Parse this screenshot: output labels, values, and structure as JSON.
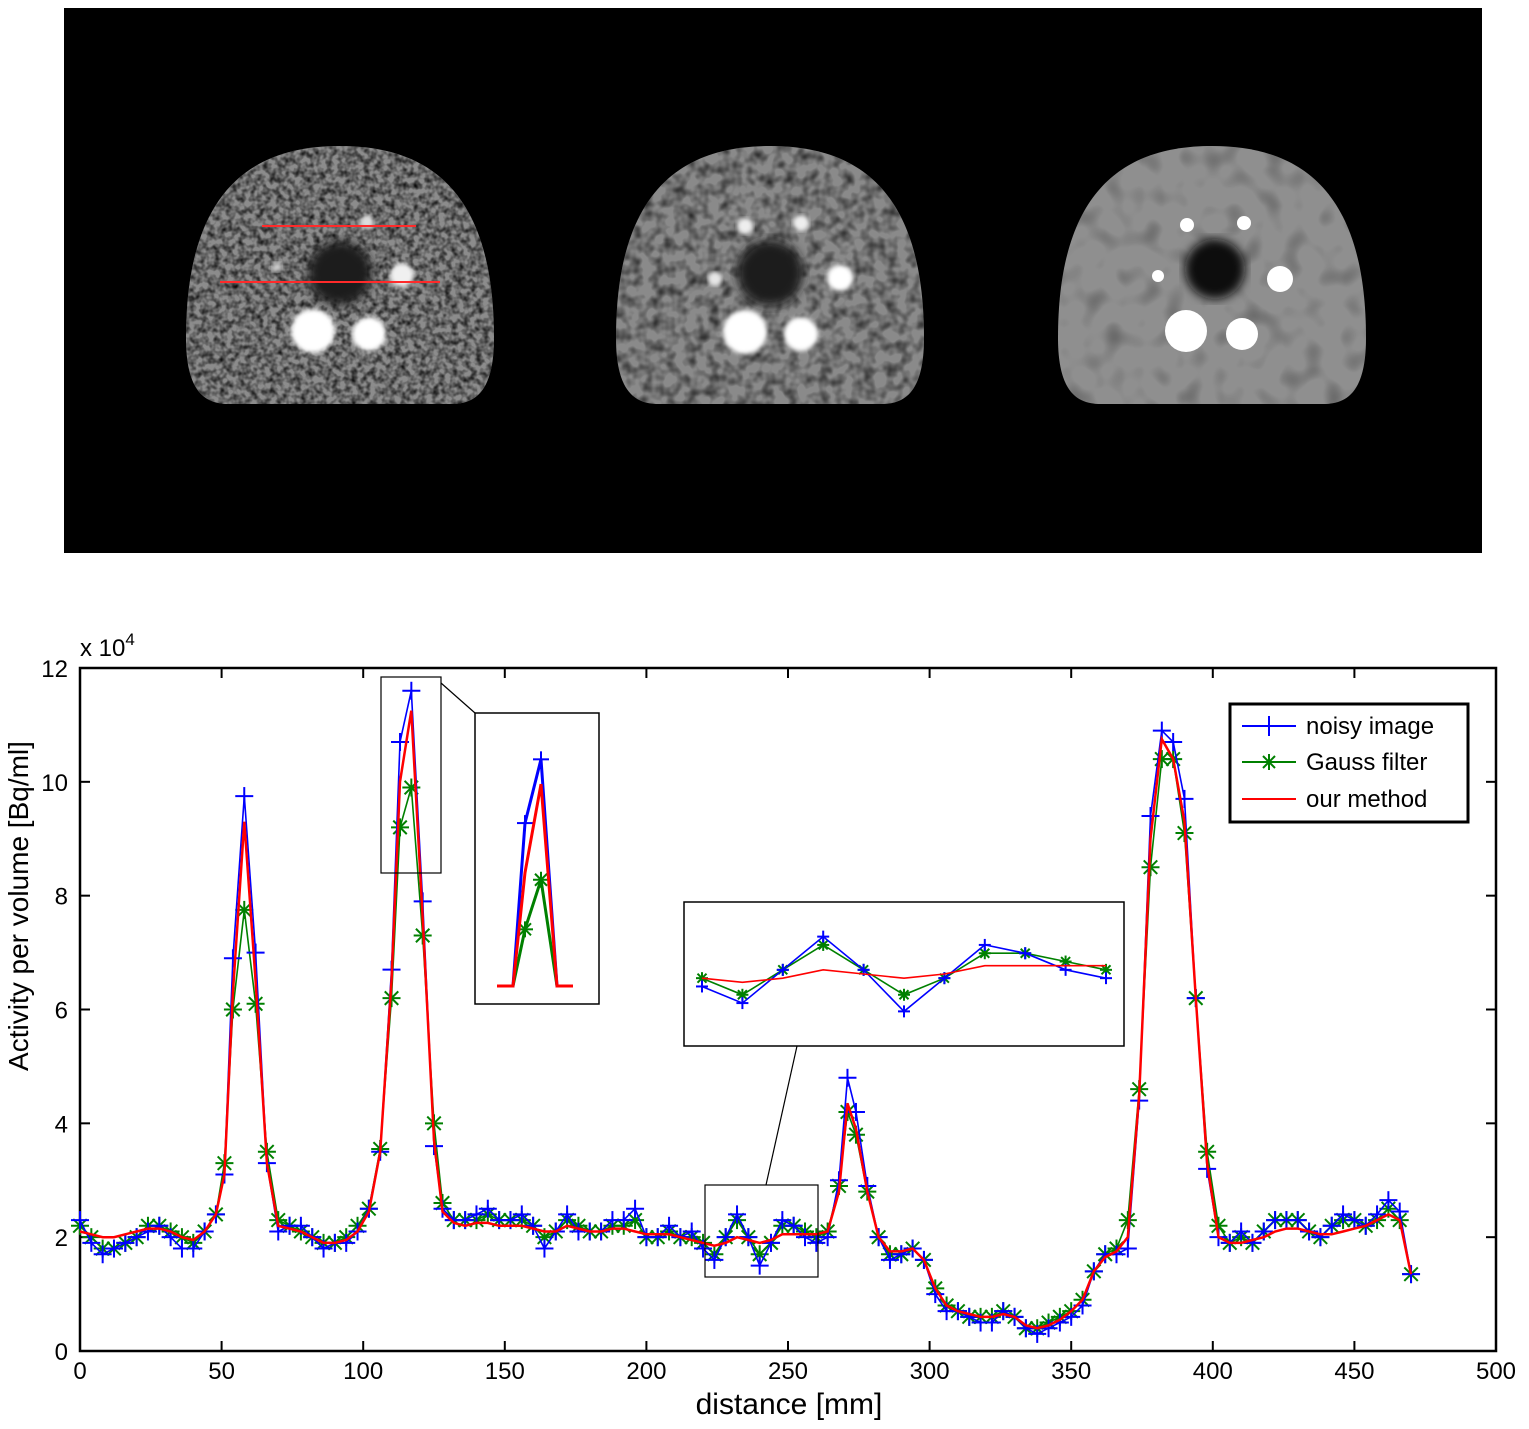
{
  "images": {
    "panel_background": "#000000",
    "profile_line_color": "#ff2a2a",
    "phantom_count": 3
  },
  "chart_data": {
    "type": "line",
    "title": "",
    "xlabel": "distance [mm]",
    "ylabel": "Activity per volume [Bq/ml]",
    "y_multiplier": "x 10",
    "y_multiplier_exponent": "4",
    "xlim": [
      0,
      500
    ],
    "ylim": [
      0,
      12
    ],
    "x_ticks": [
      0,
      50,
      100,
      150,
      200,
      250,
      300,
      350,
      400,
      450,
      500
    ],
    "y_ticks": [
      0,
      2,
      4,
      6,
      8,
      10,
      12
    ],
    "grid": false,
    "legend_position": "top-right",
    "series": [
      {
        "name": "noisy image",
        "color": "#0000ff",
        "marker": "plus",
        "x": [
          0,
          4,
          8,
          12,
          16,
          20,
          24,
          28,
          32,
          36,
          40,
          44,
          48,
          51,
          54,
          58,
          62,
          66,
          70,
          74,
          78,
          82,
          86,
          90,
          94,
          98,
          102,
          106,
          110,
          113,
          117,
          121,
          125,
          128,
          132,
          136,
          140,
          144,
          148,
          152,
          156,
          160,
          164,
          168,
          172,
          176,
          180,
          184,
          188,
          192,
          196,
          200,
          204,
          208,
          212,
          216,
          220,
          224,
          228,
          232,
          236,
          240,
          244,
          248,
          252,
          256,
          260,
          264,
          268,
          271,
          274,
          278,
          282,
          286,
          290,
          294,
          298,
          302,
          306,
          310,
          314,
          318,
          322,
          326,
          330,
          334,
          338,
          342,
          346,
          350,
          354,
          358,
          362,
          366,
          370,
          374,
          378,
          382,
          386,
          390,
          394,
          398,
          402,
          406,
          410,
          414,
          418,
          422,
          426,
          430,
          434,
          438,
          442,
          446,
          450,
          454,
          458,
          462,
          466,
          470
        ],
        "values": [
          2.3,
          1.9,
          1.7,
          1.8,
          1.9,
          2.0,
          2.1,
          2.2,
          2.0,
          1.8,
          1.8,
          2.1,
          2.4,
          3.1,
          6.9,
          9.75,
          7.0,
          3.3,
          2.1,
          2.2,
          2.2,
          2.0,
          1.8,
          1.9,
          1.9,
          2.1,
          2.5,
          3.5,
          6.7,
          10.7,
          11.6,
          7.9,
          3.6,
          2.5,
          2.3,
          2.3,
          2.4,
          2.5,
          2.3,
          2.3,
          2.4,
          2.2,
          1.8,
          2.1,
          2.4,
          2.1,
          2.1,
          2.1,
          2.3,
          2.3,
          2.5,
          2.0,
          2.0,
          2.2,
          2.0,
          2.1,
          1.8,
          1.6,
          2.0,
          2.4,
          2.0,
          1.5,
          1.9,
          2.3,
          2.2,
          2.0,
          1.9,
          2.0,
          3.0,
          4.8,
          4.2,
          2.9,
          2.0,
          1.6,
          1.7,
          1.8,
          1.6,
          1.0,
          0.7,
          0.7,
          0.6,
          0.5,
          0.5,
          0.7,
          0.6,
          0.4,
          0.3,
          0.4,
          0.5,
          0.6,
          0.8,
          1.4,
          1.7,
          1.7,
          1.8,
          4.4,
          9.4,
          10.9,
          10.7,
          9.7,
          6.2,
          3.2,
          2.0,
          1.9,
          2.1,
          1.9,
          2.1,
          2.3,
          2.3,
          2.3,
          2.1,
          2.0,
          2.2,
          2.4,
          2.3,
          2.2,
          2.4,
          2.65,
          2.45,
          1.35
        ]
      },
      {
        "name": "Gauss filter",
        "color": "#008000",
        "marker": "star",
        "x": [
          0,
          4,
          8,
          12,
          16,
          20,
          24,
          28,
          32,
          36,
          40,
          44,
          48,
          51,
          54,
          58,
          62,
          66,
          70,
          74,
          78,
          82,
          86,
          90,
          94,
          98,
          102,
          106,
          110,
          113,
          117,
          121,
          125,
          128,
          132,
          136,
          140,
          144,
          148,
          152,
          156,
          160,
          164,
          168,
          172,
          176,
          180,
          184,
          188,
          192,
          196,
          200,
          204,
          208,
          212,
          216,
          220,
          224,
          228,
          232,
          236,
          240,
          244,
          248,
          252,
          256,
          260,
          264,
          268,
          271,
          274,
          278,
          282,
          286,
          290,
          294,
          298,
          302,
          306,
          310,
          314,
          318,
          322,
          326,
          330,
          334,
          338,
          342,
          346,
          350,
          354,
          358,
          362,
          366,
          370,
          374,
          378,
          382,
          386,
          390,
          394,
          398,
          402,
          406,
          410,
          414,
          418,
          422,
          426,
          430,
          434,
          438,
          442,
          446,
          450,
          454,
          458,
          462,
          466,
          470
        ],
        "values": [
          2.2,
          2.0,
          1.8,
          1.8,
          1.9,
          2.0,
          2.2,
          2.2,
          2.1,
          2.0,
          1.9,
          2.1,
          2.4,
          3.3,
          6.0,
          7.75,
          6.1,
          3.5,
          2.3,
          2.2,
          2.1,
          2.0,
          1.9,
          1.9,
          2.0,
          2.2,
          2.5,
          3.55,
          6.2,
          9.2,
          9.9,
          7.3,
          4.0,
          2.6,
          2.3,
          2.3,
          2.3,
          2.4,
          2.3,
          2.3,
          2.3,
          2.2,
          2.0,
          2.1,
          2.3,
          2.2,
          2.1,
          2.1,
          2.2,
          2.2,
          2.3,
          2.0,
          2.0,
          2.1,
          2.0,
          2.0,
          1.9,
          1.7,
          2.0,
          2.3,
          2.0,
          1.7,
          1.9,
          2.2,
          2.2,
          2.1,
          2.0,
          2.1,
          2.9,
          4.2,
          3.8,
          2.8,
          2.0,
          1.7,
          1.7,
          1.8,
          1.6,
          1.1,
          0.8,
          0.7,
          0.6,
          0.6,
          0.6,
          0.7,
          0.6,
          0.4,
          0.4,
          0.5,
          0.6,
          0.7,
          0.9,
          1.4,
          1.7,
          1.8,
          2.3,
          4.6,
          8.5,
          10.4,
          10.4,
          9.1,
          6.2,
          3.5,
          2.2,
          1.9,
          2.0,
          1.9,
          2.1,
          2.3,
          2.3,
          2.3,
          2.1,
          2.0,
          2.2,
          2.3,
          2.3,
          2.2,
          2.3,
          2.5,
          2.3,
          1.35
        ]
      },
      {
        "name": "our method",
        "color": "#ff0000",
        "marker": "none",
        "x": [
          0,
          4,
          8,
          12,
          16,
          20,
          24,
          28,
          32,
          36,
          40,
          44,
          48,
          51,
          54,
          58,
          62,
          66,
          70,
          74,
          78,
          82,
          86,
          90,
          94,
          98,
          102,
          106,
          110,
          113,
          117,
          121,
          125,
          128,
          132,
          136,
          140,
          144,
          148,
          152,
          156,
          160,
          164,
          168,
          172,
          176,
          180,
          184,
          188,
          192,
          196,
          200,
          204,
          208,
          212,
          216,
          220,
          224,
          228,
          232,
          236,
          240,
          244,
          248,
          252,
          256,
          260,
          264,
          268,
          271,
          274,
          278,
          282,
          286,
          290,
          294,
          298,
          302,
          306,
          310,
          314,
          318,
          322,
          326,
          330,
          334,
          338,
          342,
          346,
          350,
          354,
          358,
          362,
          366,
          370,
          374,
          378,
          382,
          386,
          390,
          394,
          398,
          402,
          406,
          410,
          414,
          418,
          422,
          426,
          430,
          434,
          438,
          442,
          446,
          450,
          454,
          458,
          462,
          466,
          470
        ],
        "values": [
          2.1,
          2.05,
          2.0,
          2.0,
          2.05,
          2.1,
          2.15,
          2.15,
          2.1,
          2.0,
          1.95,
          2.1,
          2.4,
          3.1,
          6.3,
          9.3,
          6.5,
          3.3,
          2.2,
          2.15,
          2.1,
          2.0,
          1.9,
          1.9,
          1.95,
          2.1,
          2.45,
          3.5,
          6.5,
          10.0,
          11.25,
          7.6,
          3.7,
          2.45,
          2.25,
          2.2,
          2.25,
          2.25,
          2.2,
          2.2,
          2.2,
          2.15,
          2.1,
          2.1,
          2.2,
          2.15,
          2.1,
          2.1,
          2.15,
          2.15,
          2.1,
          2.05,
          2.05,
          2.05,
          2.0,
          1.95,
          1.9,
          1.85,
          1.9,
          2.0,
          1.95,
          1.9,
          1.95,
          2.05,
          2.05,
          2.05,
          2.05,
          2.1,
          2.8,
          4.35,
          3.9,
          2.8,
          2.0,
          1.75,
          1.75,
          1.8,
          1.6,
          1.1,
          0.8,
          0.7,
          0.65,
          0.6,
          0.6,
          0.65,
          0.6,
          0.45,
          0.4,
          0.45,
          0.55,
          0.7,
          0.9,
          1.4,
          1.65,
          1.75,
          2.0,
          4.5,
          9.0,
          10.75,
          10.4,
          9.3,
          6.2,
          3.3,
          2.0,
          1.9,
          1.9,
          1.95,
          2.0,
          2.1,
          2.15,
          2.15,
          2.1,
          2.05,
          2.05,
          2.1,
          2.15,
          2.2,
          2.3,
          2.4,
          2.3,
          1.35
        ]
      }
    ],
    "insets": [
      {
        "zoom_x": [
          105,
          127
        ],
        "zoom_y": [
          8.4,
          12.0
        ],
        "kind": "peak"
      },
      {
        "zoom_x": [
          220,
          260
        ],
        "zoom_y": [
          1.3,
          2.6
        ],
        "kind": "flat"
      }
    ]
  }
}
